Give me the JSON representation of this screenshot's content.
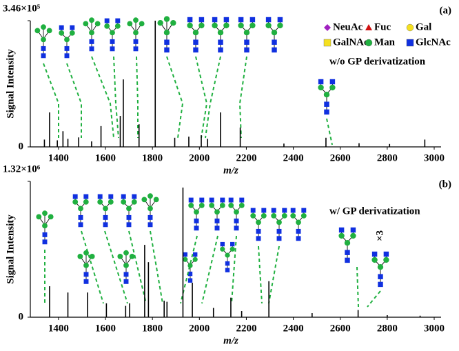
{
  "chart_data": [
    {
      "type": "spectrum",
      "panel_label": "(a)",
      "ylabel": "Signal Intensity",
      "xlabel": "m/z",
      "color": "#000000",
      "xlim": [
        1280,
        3000
      ],
      "xticks": [
        1400,
        1600,
        1800,
        2000,
        2200,
        2400,
        2600,
        2800,
        3000
      ],
      "ylim": [
        0,
        346000
      ],
      "yticks": [
        0,
        {
          "value": 346000,
          "label": "3.46×10⁵"
        }
      ],
      "annotation": "w/o GP derivatization",
      "legend": [
        {
          "name": "NeuAc",
          "color": "#a020c0",
          "shape": "diamond"
        },
        {
          "name": "Fuc",
          "color": "#d01010",
          "shape": "triangle"
        },
        {
          "name": "Gal",
          "color": "#f5e020",
          "shape": "circle"
        },
        {
          "name": "GalNAc",
          "color": "#f5e020",
          "shape": "square"
        },
        {
          "name": "Man",
          "color": "#20b040",
          "shape": "circle"
        },
        {
          "name": "GlcNAc",
          "color": "#1030e0",
          "shape": "square"
        }
      ],
      "x": [
        1340,
        1362,
        1395,
        1419,
        1440,
        1486,
        1541,
        1581,
        1663,
        1676,
        1743,
        1812,
        1895,
        1955,
        2008,
        2035,
        2090,
        2174,
        2360,
        2539,
        2680,
        2810,
        2960
      ],
      "values": [
        20000,
        94500,
        18000,
        43000,
        22000,
        26000,
        15000,
        57000,
        85000,
        185000,
        62000,
        346000,
        25000,
        28000,
        32000,
        22000,
        94500,
        53000,
        9000,
        25000,
        10000,
        8000,
        20000
      ]
    },
    {
      "type": "spectrum",
      "panel_label": "(b)",
      "ylabel": "Signal Intensity",
      "xlabel": "m/z",
      "color": "#000000",
      "xlim": [
        1280,
        3000
      ],
      "xticks": [
        1400,
        1600,
        1800,
        2000,
        2200,
        2400,
        2600,
        2800,
        3000
      ],
      "ylim": [
        0,
        1320000
      ],
      "yticks": [
        0,
        {
          "value": 1320000,
          "label": "1.32×10⁶"
        }
      ],
      "annotation": "w/ GP derivatization",
      "multiplier": "×3",
      "x": [
        1362,
        1440,
        1524,
        1604,
        1686,
        1703,
        1767,
        1783,
        1850,
        1862,
        1930,
        1970,
        2060,
        2134,
        2180,
        2296,
        2480,
        2676,
        2800,
        2940
      ],
      "values": [
        301000,
        240000,
        240000,
        135000,
        110000,
        135000,
        703000,
        535000,
        160000,
        150000,
        1260000,
        335000,
        90000,
        190000,
        60000,
        350000,
        40000,
        70000,
        20000,
        15000
      ]
    }
  ]
}
